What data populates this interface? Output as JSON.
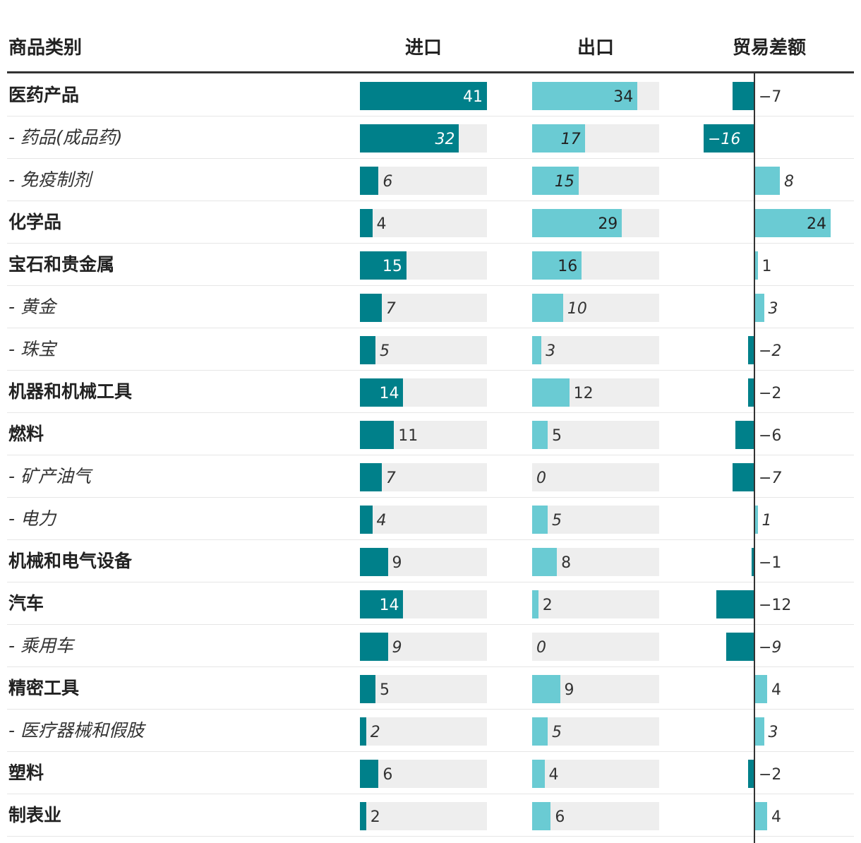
{
  "chart_data": {
    "type": "table",
    "columns": [
      "商品类别",
      "进口",
      "出口",
      "贸易差额"
    ],
    "rows": [
      {
        "category": "医药产品",
        "level": "main",
        "import": 41,
        "export": 34,
        "balance": -7
      },
      {
        "category": "- 药品(成品药)",
        "level": "sub",
        "import": 32,
        "export": 17,
        "balance": -16
      },
      {
        "category": "- 免疫制剂",
        "level": "sub",
        "import": 6,
        "export": 15,
        "balance": 8
      },
      {
        "category": "化学品",
        "level": "main",
        "import": 4,
        "export": 29,
        "balance": 24
      },
      {
        "category": "宝石和贵金属",
        "level": "main",
        "import": 15,
        "export": 16,
        "balance": 1
      },
      {
        "category": "- 黄金",
        "level": "sub",
        "import": 7,
        "export": 10,
        "balance": 3
      },
      {
        "category": "- 珠宝",
        "level": "sub",
        "import": 5,
        "export": 3,
        "balance": -2
      },
      {
        "category": "机器和机械工具",
        "level": "main",
        "import": 14,
        "export": 12,
        "balance": -2
      },
      {
        "category": "燃料",
        "level": "main",
        "import": 11,
        "export": 5,
        "balance": -6
      },
      {
        "category": "- 矿产油气",
        "level": "sub",
        "import": 7,
        "export": 0,
        "balance": -7
      },
      {
        "category": "- 电力",
        "level": "sub",
        "import": 4,
        "export": 5,
        "balance": 1
      },
      {
        "category": "机械和电气设备",
        "level": "main",
        "import": 9,
        "export": 8,
        "balance": -1
      },
      {
        "category": "汽车",
        "level": "main",
        "import": 14,
        "export": 2,
        "balance": -12
      },
      {
        "category": "- 乘用车",
        "level": "sub",
        "import": 9,
        "export": 0,
        "balance": -9
      },
      {
        "category": "精密工具",
        "level": "main",
        "import": 5,
        "export": 9,
        "balance": 4
      },
      {
        "category": "- 医疗器械和假肢",
        "level": "sub",
        "import": 2,
        "export": 5,
        "balance": 3
      },
      {
        "category": "塑料",
        "level": "main",
        "import": 6,
        "export": 4,
        "balance": -2
      },
      {
        "category": "制表业",
        "level": "main",
        "import": 2,
        "export": 6,
        "balance": 4
      }
    ],
    "import_range": [
      0,
      41
    ],
    "export_range": [
      0,
      41
    ],
    "colors": {
      "import": "#00808a",
      "export": "#6acbd3",
      "balance_positive": "#6acbd3",
      "balance_negative": "#00808a",
      "track": "#eeeeee"
    }
  }
}
